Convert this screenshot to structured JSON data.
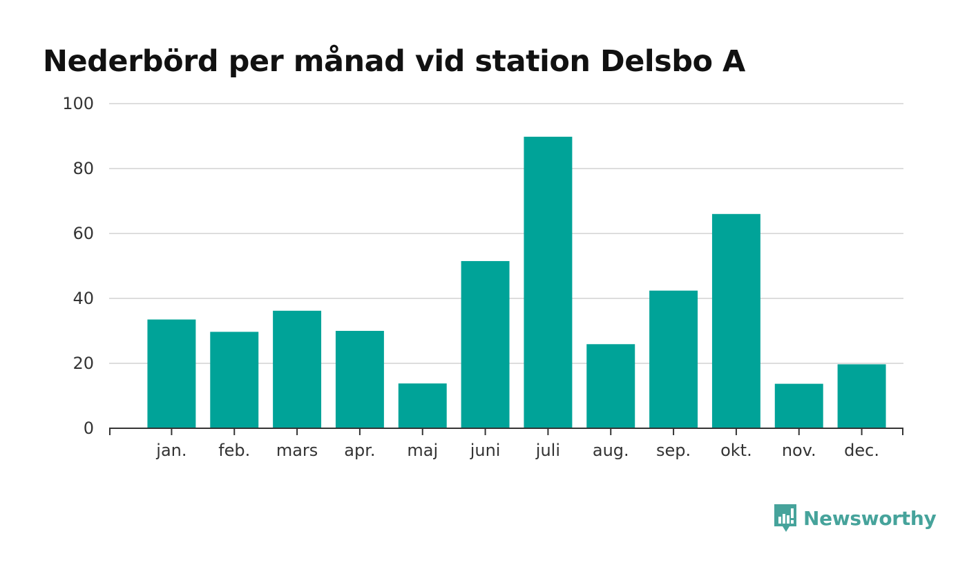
{
  "colors": {
    "bar": "#00a398",
    "grid": "#dddddd",
    "axis": "#333333",
    "brand": "#46a39b"
  },
  "brand": {
    "name": "Newsworthy"
  },
  "chart_data": {
    "type": "bar",
    "title": "Nederbörd per månad vid station Delsbo A",
    "xlabel": "",
    "ylabel": "",
    "ylim": [
      0,
      100
    ],
    "yticks": [
      "0",
      "20",
      "40",
      "60",
      "80",
      "100"
    ],
    "grid": true,
    "categories": [
      "jan.",
      "feb.",
      "mars",
      "apr.",
      "maj",
      "juni",
      "juli",
      "aug.",
      "sep.",
      "okt.",
      "nov.",
      "dec."
    ],
    "values": [
      33.5,
      29.7,
      36.2,
      30.0,
      13.8,
      51.5,
      89.8,
      25.9,
      42.4,
      66.0,
      13.7,
      19.7
    ]
  }
}
